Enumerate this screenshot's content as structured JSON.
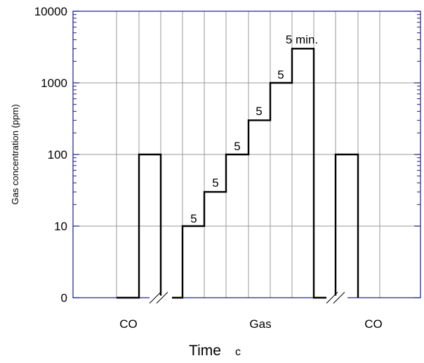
{
  "chart_data": {
    "type": "line",
    "ylabel": "Gas concentration (ppm)",
    "xlabel": "Time",
    "xlabel_suffix": "c",
    "y_scale": "log",
    "y_tick_labels": [
      "0",
      "10",
      "100",
      "1000",
      "10000"
    ],
    "grid": true,
    "categories": [
      "CO",
      "Gas",
      "CO"
    ],
    "annotations": [
      "5",
      "5",
      "5",
      "5",
      "5",
      "5 min."
    ],
    "series": [
      {
        "values": [
          {
            "x": 0.0,
            "y": 0
          },
          {
            "x": 1.0,
            "y": 100
          },
          {
            "x": 2.0,
            "y": 0
          },
          {
            "x": 3.0,
            "y": 10
          },
          {
            "x": 4.0,
            "y": 30
          },
          {
            "x": 5.0,
            "y": 100
          },
          {
            "x": 6.0,
            "y": 300
          },
          {
            "x": 7.0,
            "y": 1000
          },
          {
            "x": 8.0,
            "y": 3000
          },
          {
            "x": 9.0,
            "y": 0
          },
          {
            "x": 10.0,
            "y": 100
          },
          {
            "x": 11.0,
            "y": 0
          }
        ]
      }
    ]
  }
}
